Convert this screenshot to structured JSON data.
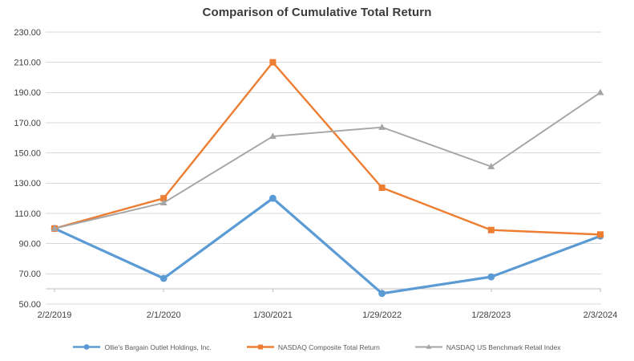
{
  "chart_data": {
    "type": "line",
    "title": "Comparison of Cumulative Total Return",
    "categories": [
      "2/2/2019",
      "2/1/2020",
      "1/30/2021",
      "1/29/2022",
      "1/28/2023",
      "2/3/2024"
    ],
    "series": [
      {
        "name": "Ollie's Bargain Outlet Holdings, Inc.",
        "color": "#5B9BD5",
        "marker": "circle",
        "line_width": 3.2,
        "values": [
          100,
          67,
          120,
          57,
          68,
          95
        ]
      },
      {
        "name": "NASDAQ Composite Total Return",
        "color": "#ED7D31",
        "marker": "square",
        "line_width": 2.4,
        "values": [
          100,
          120,
          210,
          127,
          99,
          96
        ]
      },
      {
        "name": "NASDAQ US Benchmark Retail Index",
        "color": "#A5A5A5",
        "marker": "triangle",
        "line_width": 1.9,
        "values": [
          100,
          117,
          161,
          167,
          141,
          190
        ]
      }
    ],
    "y_axis": {
      "min": 50,
      "max": 230,
      "step": 20,
      "labels": [
        "230.00",
        "210.00",
        "190.00",
        "170.00",
        "150.00",
        "130.00",
        "110.00",
        "90.00",
        "70.00",
        "50.00"
      ]
    },
    "x_axis": {
      "cross_value": 60
    },
    "legend_position": "bottom",
    "grid": true,
    "colors": {
      "gridline": "#d9d9d9",
      "axis_line": "#bfbfbf",
      "axis_label": "#404040",
      "legend_text": "#595959",
      "title_text": "#3b3b3b"
    }
  }
}
